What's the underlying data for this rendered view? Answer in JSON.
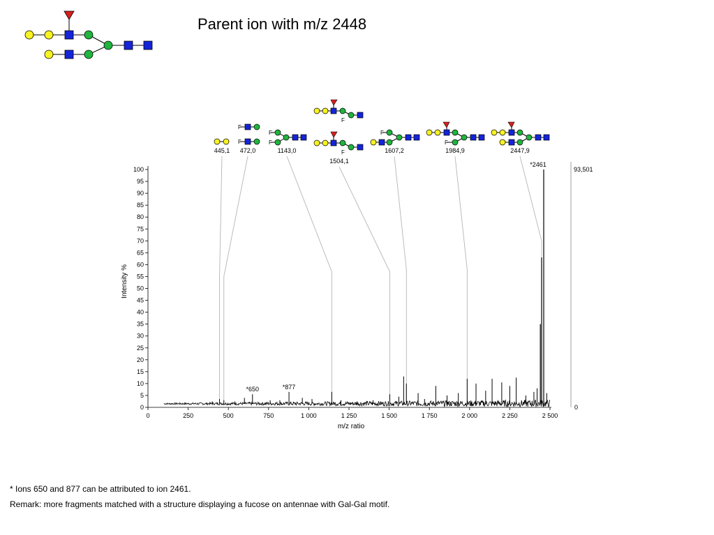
{
  "slide": {
    "title": "Parent ion with m/z 2448",
    "footnotes": [
      "* Ions 650 and 877 can be attributed to ion 2461.",
      "Remark: more fragments matched with a structure displaying a fucose on antennae with Gal-Gal motif."
    ]
  },
  "colors": {
    "galactose": "#f7f221",
    "glcnac": "#1424d8",
    "mannose": "#1fb53e",
    "fucose": "#d6211c",
    "spectrum": "#000000",
    "leader": "#b5b5b5"
  },
  "chart_data": {
    "type": "line",
    "xlabel": "m/z ratio",
    "ylabel": "Intensity %",
    "xlim": [
      0,
      2500
    ],
    "ylim": [
      0,
      100
    ],
    "x_ticks": [
      {
        "v": 0,
        "label": "0"
      },
      {
        "v": 250,
        "label": "250"
      },
      {
        "v": 500,
        "label": "500"
      },
      {
        "v": 750,
        "label": "750"
      },
      {
        "v": 1000,
        "label": "1 000"
      },
      {
        "v": 1250,
        "label": "1 250"
      },
      {
        "v": 1500,
        "label": "1 500"
      },
      {
        "v": 1750,
        "label": "1 750"
      },
      {
        "v": 2000,
        "label": "2 000"
      },
      {
        "v": 2250,
        "label": "2 250"
      },
      {
        "v": 2500,
        "label": "2 500"
      }
    ],
    "y_ticks": [
      0,
      5,
      10,
      15,
      20,
      25,
      30,
      35,
      40,
      45,
      50,
      55,
      60,
      65,
      70,
      75,
      80,
      85,
      90,
      95,
      100
    ],
    "right_axis": {
      "top_label": "93,501",
      "bottom_label": "0"
    },
    "baseline": 1.5,
    "peaks": [
      {
        "x": 400,
        "y": 2.5
      },
      {
        "x": 445,
        "y": 3.5
      },
      {
        "x": 472,
        "y": 3.0
      },
      {
        "x": 540,
        "y": 2.5
      },
      {
        "x": 600,
        "y": 4.0
      },
      {
        "x": 650,
        "y": 5.5
      },
      {
        "x": 760,
        "y": 3.0
      },
      {
        "x": 820,
        "y": 3.0
      },
      {
        "x": 877,
        "y": 6.5
      },
      {
        "x": 960,
        "y": 4.0
      },
      {
        "x": 1020,
        "y": 3.5
      },
      {
        "x": 1143,
        "y": 6.5
      },
      {
        "x": 1200,
        "y": 3.0
      },
      {
        "x": 1300,
        "y": 2.5
      },
      {
        "x": 1400,
        "y": 3.0
      },
      {
        "x": 1504,
        "y": 5.5
      },
      {
        "x": 1560,
        "y": 4.5
      },
      {
        "x": 1590,
        "y": 13.0
      },
      {
        "x": 1607,
        "y": 10.0
      },
      {
        "x": 1680,
        "y": 6.0
      },
      {
        "x": 1720,
        "y": 3.5
      },
      {
        "x": 1790,
        "y": 9.0
      },
      {
        "x": 1860,
        "y": 5.0
      },
      {
        "x": 1930,
        "y": 6.0
      },
      {
        "x": 1985,
        "y": 12.0
      },
      {
        "x": 2040,
        "y": 10.0
      },
      {
        "x": 2100,
        "y": 7.0
      },
      {
        "x": 2140,
        "y": 12.0
      },
      {
        "x": 2200,
        "y": 10.5
      },
      {
        "x": 2250,
        "y": 9.0
      },
      {
        "x": 2290,
        "y": 12.5
      },
      {
        "x": 2350,
        "y": 5.0
      },
      {
        "x": 2400,
        "y": 6.5
      },
      {
        "x": 2420,
        "y": 8.0
      },
      {
        "x": 2440,
        "y": 35.0
      },
      {
        "x": 2448,
        "y": 63.0
      },
      {
        "x": 2461,
        "y": 100.0
      },
      {
        "x": 2480,
        "y": 6.0
      }
    ],
    "annotations": [
      {
        "x": 650,
        "y": 5.5,
        "label": "*650"
      },
      {
        "x": 877,
        "y": 6.5,
        "label": "*877"
      },
      {
        "x": 2461,
        "y": 100.0,
        "label": "*2461"
      }
    ],
    "matched_fragments": [
      {
        "x": 445.1,
        "label": "445,1"
      },
      {
        "x": 472.0,
        "label": "472,0"
      },
      {
        "x": 1143.0,
        "label": "1143,0"
      },
      {
        "x": 1504.1,
        "label": "1504,1"
      },
      {
        "x": 1607.2,
        "label": "1607,2"
      },
      {
        "x": 1984.9,
        "label": "1984,9"
      },
      {
        "x": 2447.9,
        "label": "2447,9"
      }
    ]
  }
}
